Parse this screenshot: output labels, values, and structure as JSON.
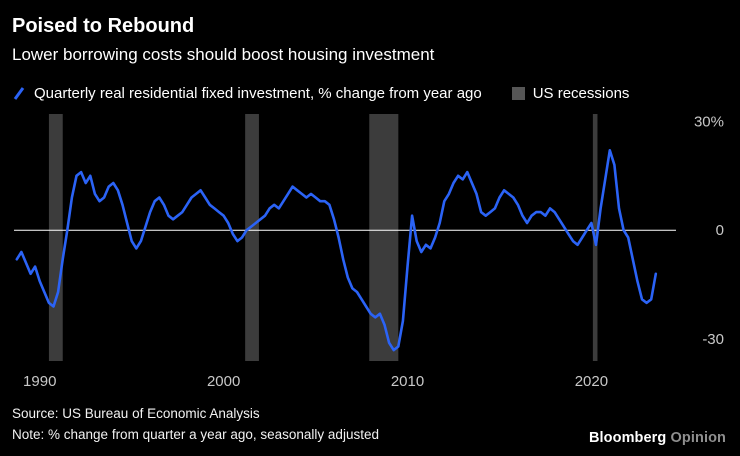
{
  "header": {
    "title": "Poised to Rebound",
    "subtitle": "Lower borrowing costs should boost housing investment"
  },
  "legend": {
    "series_label": "Quarterly real residential fixed investment, % change from year ago",
    "recession_label": "US recessions"
  },
  "footer": {
    "source": "Source: US Bureau of Economic Analysis",
    "note": "Note: % change from quarter a year ago, seasonally adjusted",
    "brand": "Bloomberg",
    "brand_suffix": "Opinion"
  },
  "colors": {
    "background": "#000000",
    "line": "#2b63f6",
    "recession_band": "#3c3c3c",
    "legend_swatch": "#565656",
    "zero_line": "#ffffff",
    "axis_label": "#c8c8c8"
  },
  "chart_data": {
    "type": "line",
    "title": "Poised to Rebound",
    "subtitle": "Lower borrowing costs should boost housing investment",
    "xlabel": "",
    "ylabel": "% change from year ago",
    "x_range": [
      1988.6,
      2024.6
    ],
    "y_range": [
      -36,
      32
    ],
    "grid": false,
    "legend_position": "top",
    "x_ticks": [
      {
        "value": 1990,
        "label": "1990"
      },
      {
        "value": 2000,
        "label": "2000"
      },
      {
        "value": 2010,
        "label": "2010"
      },
      {
        "value": 2020,
        "label": "2020"
      }
    ],
    "y_ticks": [
      {
        "value": 30,
        "label": "30%"
      },
      {
        "value": 0,
        "label": "0"
      },
      {
        "value": -30,
        "label": "-30"
      }
    ],
    "recessions": [
      [
        1990.5,
        1991.25
      ],
      [
        2001.17,
        2001.92
      ],
      [
        2007.92,
        2009.5
      ],
      [
        2020.08,
        2020.33
      ]
    ],
    "series": [
      {
        "name": "Quarterly real residential fixed investment, % change from year ago",
        "points": [
          [
            1988.75,
            -8
          ],
          [
            1989,
            -6
          ],
          [
            1989.25,
            -9
          ],
          [
            1989.5,
            -12
          ],
          [
            1989.75,
            -10
          ],
          [
            1990,
            -14
          ],
          [
            1990.25,
            -17
          ],
          [
            1990.5,
            -20
          ],
          [
            1990.75,
            -21
          ],
          [
            1991,
            -17
          ],
          [
            1991.25,
            -8
          ],
          [
            1991.5,
            0
          ],
          [
            1991.75,
            9
          ],
          [
            1992,
            15
          ],
          [
            1992.25,
            16
          ],
          [
            1992.5,
            13
          ],
          [
            1992.75,
            15
          ],
          [
            1993,
            10
          ],
          [
            1993.25,
            8
          ],
          [
            1993.5,
            9
          ],
          [
            1993.75,
            12
          ],
          [
            1994,
            13
          ],
          [
            1994.25,
            11
          ],
          [
            1994.5,
            7
          ],
          [
            1994.75,
            2
          ],
          [
            1995,
            -3
          ],
          [
            1995.25,
            -5
          ],
          [
            1995.5,
            -3
          ],
          [
            1995.75,
            1
          ],
          [
            1996,
            5
          ],
          [
            1996.25,
            8
          ],
          [
            1996.5,
            9
          ],
          [
            1996.75,
            7
          ],
          [
            1997,
            4
          ],
          [
            1997.25,
            3
          ],
          [
            1997.5,
            4
          ],
          [
            1997.75,
            5
          ],
          [
            1998,
            7
          ],
          [
            1998.25,
            9
          ],
          [
            1998.5,
            10
          ],
          [
            1998.75,
            11
          ],
          [
            1999,
            9
          ],
          [
            1999.25,
            7
          ],
          [
            1999.5,
            6
          ],
          [
            1999.75,
            5
          ],
          [
            2000,
            4
          ],
          [
            2000.25,
            2
          ],
          [
            2000.5,
            -1
          ],
          [
            2000.75,
            -3
          ],
          [
            2001,
            -2
          ],
          [
            2001.25,
            0
          ],
          [
            2001.5,
            1
          ],
          [
            2001.75,
            2
          ],
          [
            2002,
            3
          ],
          [
            2002.25,
            4
          ],
          [
            2002.5,
            6
          ],
          [
            2002.75,
            7
          ],
          [
            2003,
            6
          ],
          [
            2003.25,
            8
          ],
          [
            2003.5,
            10
          ],
          [
            2003.75,
            12
          ],
          [
            2004,
            11
          ],
          [
            2004.25,
            10
          ],
          [
            2004.5,
            9
          ],
          [
            2004.75,
            10
          ],
          [
            2005,
            9
          ],
          [
            2005.25,
            8
          ],
          [
            2005.5,
            8
          ],
          [
            2005.75,
            7
          ],
          [
            2006,
            3
          ],
          [
            2006.25,
            -2
          ],
          [
            2006.5,
            -8
          ],
          [
            2006.75,
            -13
          ],
          [
            2007,
            -16
          ],
          [
            2007.25,
            -17
          ],
          [
            2007.5,
            -19
          ],
          [
            2007.75,
            -21
          ],
          [
            2008,
            -23
          ],
          [
            2008.25,
            -24
          ],
          [
            2008.5,
            -23
          ],
          [
            2008.75,
            -26
          ],
          [
            2009,
            -31
          ],
          [
            2009.25,
            -33
          ],
          [
            2009.5,
            -32
          ],
          [
            2009.75,
            -25
          ],
          [
            2010,
            -10
          ],
          [
            2010.25,
            4
          ],
          [
            2010.5,
            -3
          ],
          [
            2010.75,
            -6
          ],
          [
            2011,
            -4
          ],
          [
            2011.25,
            -5
          ],
          [
            2011.5,
            -2
          ],
          [
            2011.75,
            2
          ],
          [
            2012,
            8
          ],
          [
            2012.25,
            10
          ],
          [
            2012.5,
            13
          ],
          [
            2012.75,
            15
          ],
          [
            2013,
            14
          ],
          [
            2013.25,
            16
          ],
          [
            2013.5,
            13
          ],
          [
            2013.75,
            10
          ],
          [
            2014,
            5
          ],
          [
            2014.25,
            4
          ],
          [
            2014.5,
            5
          ],
          [
            2014.75,
            6
          ],
          [
            2015,
            9
          ],
          [
            2015.25,
            11
          ],
          [
            2015.5,
            10
          ],
          [
            2015.75,
            9
          ],
          [
            2016,
            7
          ],
          [
            2016.25,
            4
          ],
          [
            2016.5,
            2
          ],
          [
            2016.75,
            4
          ],
          [
            2017,
            5
          ],
          [
            2017.25,
            5
          ],
          [
            2017.5,
            4
          ],
          [
            2017.75,
            6
          ],
          [
            2018,
            5
          ],
          [
            2018.25,
            3
          ],
          [
            2018.5,
            1
          ],
          [
            2018.75,
            -1
          ],
          [
            2019,
            -3
          ],
          [
            2019.25,
            -4
          ],
          [
            2019.5,
            -2
          ],
          [
            2019.75,
            0
          ],
          [
            2020,
            2
          ],
          [
            2020.25,
            -4
          ],
          [
            2020.5,
            6
          ],
          [
            2020.75,
            14
          ],
          [
            2021,
            22
          ],
          [
            2021.25,
            18
          ],
          [
            2021.5,
            6
          ],
          [
            2021.75,
            0
          ],
          [
            2022,
            -2
          ],
          [
            2022.25,
            -8
          ],
          [
            2022.5,
            -14
          ],
          [
            2022.75,
            -19
          ],
          [
            2023,
            -20
          ],
          [
            2023.25,
            -19
          ],
          [
            2023.5,
            -12
          ]
        ]
      }
    ]
  }
}
